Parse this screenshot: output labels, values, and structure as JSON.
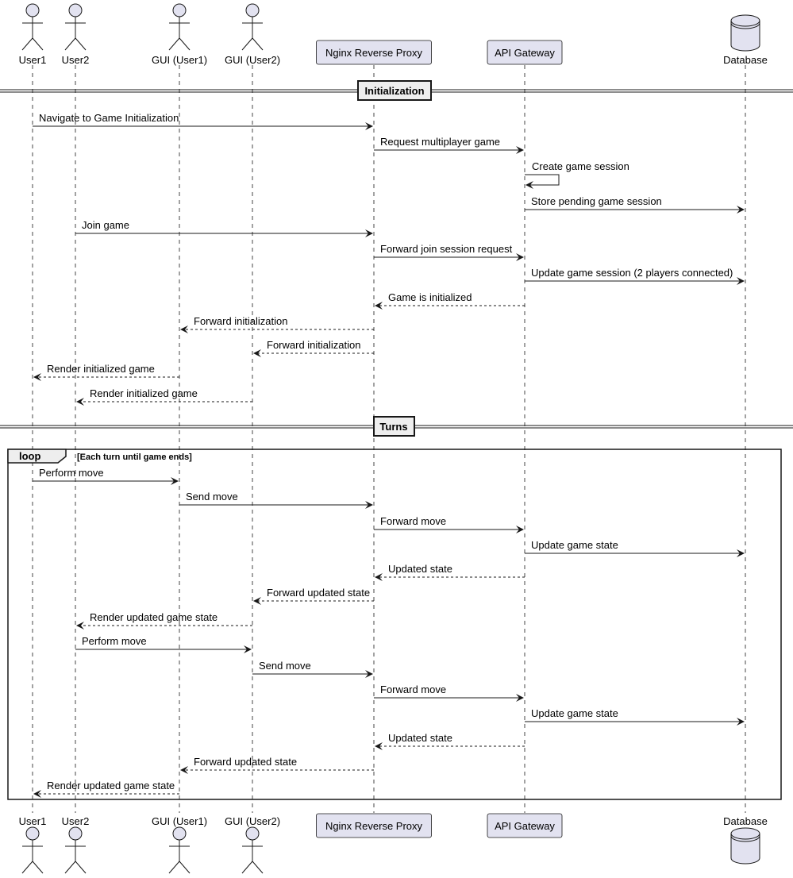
{
  "participants": [
    {
      "id": "user1",
      "label": "User1",
      "kind": "actor"
    },
    {
      "id": "user2",
      "label": "User2",
      "kind": "actor"
    },
    {
      "id": "gui1",
      "label": "GUI (User1)",
      "kind": "actor"
    },
    {
      "id": "gui2",
      "label": "GUI (User2)",
      "kind": "actor"
    },
    {
      "id": "nginx",
      "label": "Nginx Reverse Proxy",
      "kind": "box"
    },
    {
      "id": "api",
      "label": "API Gateway",
      "kind": "box"
    },
    {
      "id": "db",
      "label": "Database",
      "kind": "database"
    }
  ],
  "dividers": {
    "init": "Initialization",
    "turns": "Turns"
  },
  "loop": {
    "keyword": "loop",
    "condition": "[Each turn until game ends]"
  },
  "messages": [
    {
      "from": "user1",
      "to": "nginx",
      "label": "Navigate to Game Initialization",
      "style": "sync"
    },
    {
      "from": "nginx",
      "to": "api",
      "label": "Request multiplayer game",
      "style": "sync"
    },
    {
      "from": "api",
      "to": "api",
      "label": "Create game session",
      "style": "self"
    },
    {
      "from": "api",
      "to": "db",
      "label": "Store pending game session",
      "style": "sync"
    },
    {
      "from": "user2",
      "to": "nginx",
      "label": "Join game",
      "style": "sync"
    },
    {
      "from": "nginx",
      "to": "api",
      "label": "Forward join session request",
      "style": "sync"
    },
    {
      "from": "api",
      "to": "db",
      "label": "Update game session (2 players connected)",
      "style": "sync"
    },
    {
      "from": "api",
      "to": "nginx",
      "label": "Game is initialized",
      "style": "return"
    },
    {
      "from": "nginx",
      "to": "gui1",
      "label": "Forward initialization",
      "style": "return"
    },
    {
      "from": "nginx",
      "to": "gui2",
      "label": "Forward initialization",
      "style": "return"
    },
    {
      "from": "gui1",
      "to": "user1",
      "label": "Render initialized game",
      "style": "return"
    },
    {
      "from": "gui2",
      "to": "user2",
      "label": "Render initialized game",
      "style": "return"
    },
    {
      "from": "user1",
      "to": "gui1",
      "label": "Perform move",
      "style": "sync"
    },
    {
      "from": "gui1",
      "to": "nginx",
      "label": "Send move",
      "style": "sync"
    },
    {
      "from": "nginx",
      "to": "api",
      "label": "Forward move",
      "style": "sync"
    },
    {
      "from": "api",
      "to": "db",
      "label": "Update game state",
      "style": "sync"
    },
    {
      "from": "api",
      "to": "nginx",
      "label": "Updated state",
      "style": "return"
    },
    {
      "from": "nginx",
      "to": "gui2",
      "label": "Forward updated state",
      "style": "return"
    },
    {
      "from": "gui2",
      "to": "user2",
      "label": "Render updated game state",
      "style": "return"
    },
    {
      "from": "user2",
      "to": "gui2",
      "label": "Perform move",
      "style": "sync"
    },
    {
      "from": "gui2",
      "to": "nginx",
      "label": "Send move",
      "style": "sync"
    },
    {
      "from": "nginx",
      "to": "api",
      "label": "Forward move",
      "style": "sync"
    },
    {
      "from": "api",
      "to": "db",
      "label": "Update game state",
      "style": "sync"
    },
    {
      "from": "api",
      "to": "nginx",
      "label": "Updated state",
      "style": "return"
    },
    {
      "from": "nginx",
      "to": "gui1",
      "label": "Forward updated state",
      "style": "return"
    },
    {
      "from": "gui1",
      "to": "user1",
      "label": "Render updated game state",
      "style": "return"
    }
  ],
  "colors": {
    "participant_fill": "#E2E2F0",
    "participant_stroke": "#181818",
    "lifeline": "#181818",
    "line": "#181818"
  }
}
